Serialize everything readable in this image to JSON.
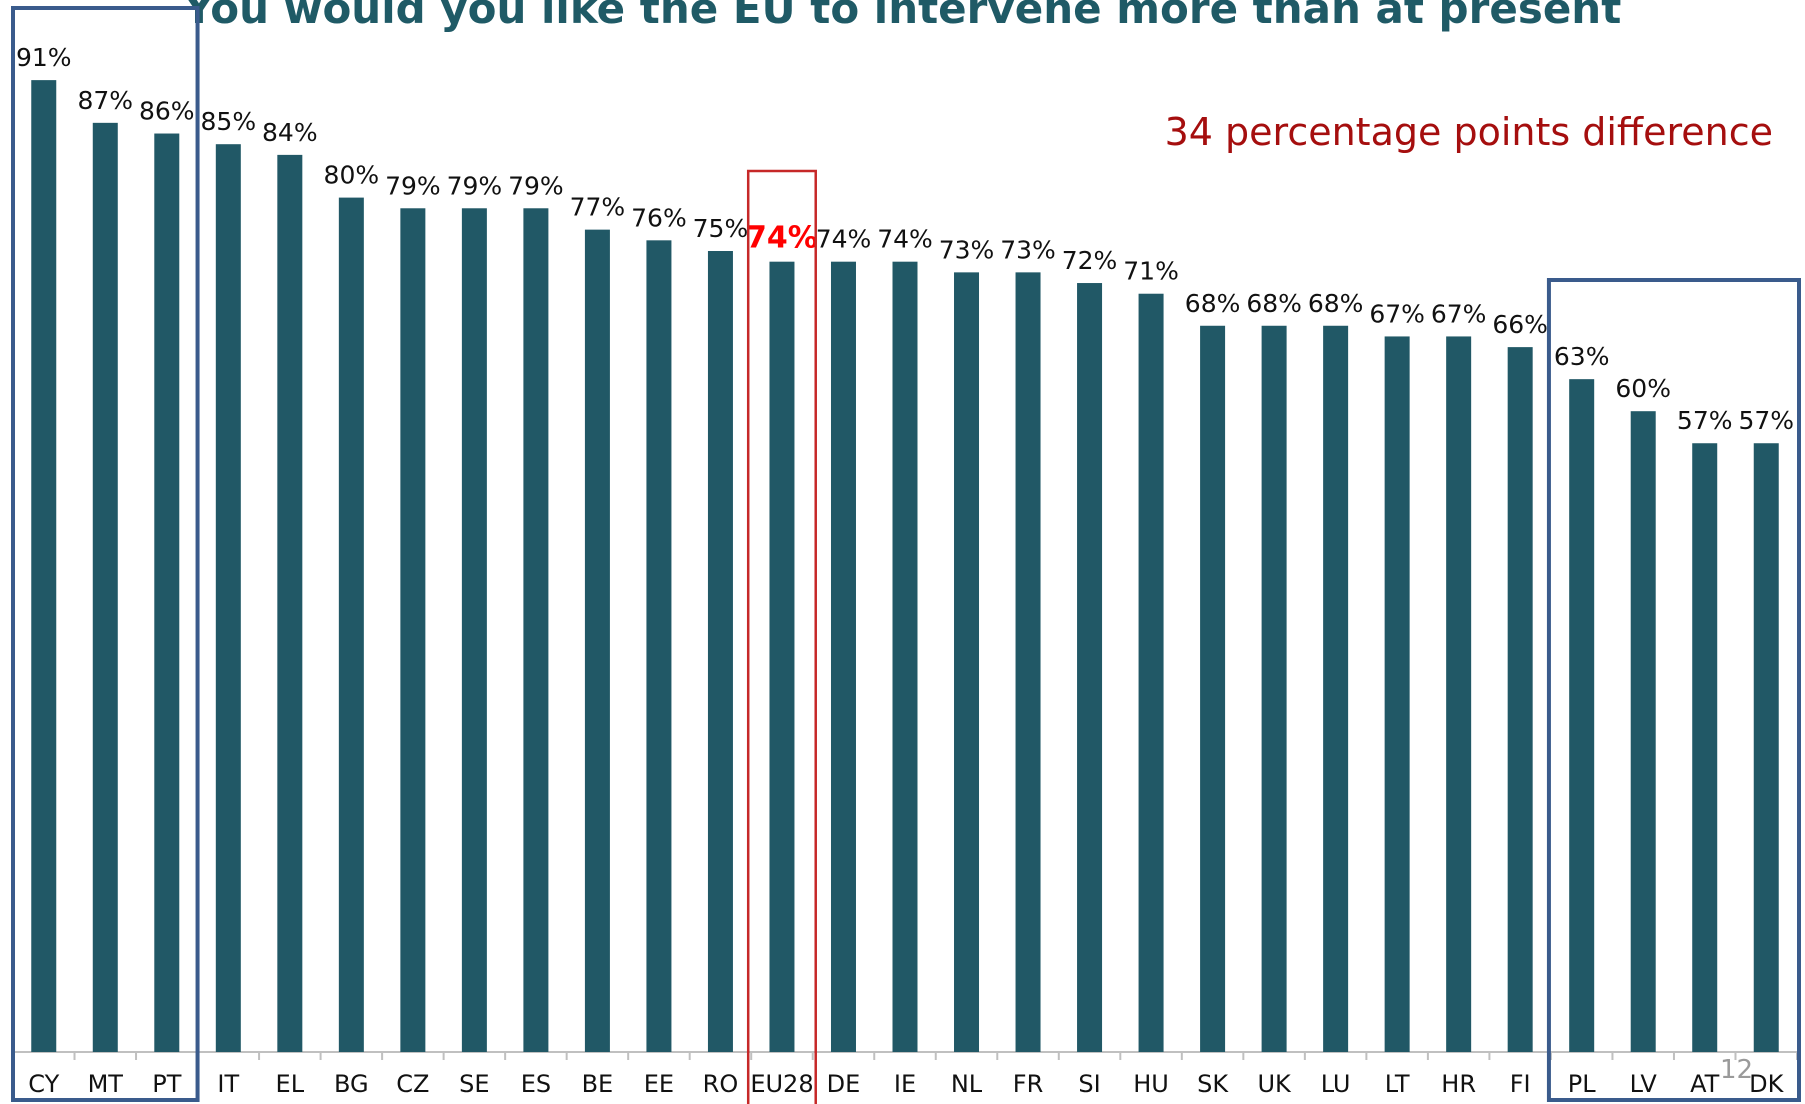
{
  "title": "You would you like the EU to intervene more than at present",
  "annotation": "34 percentage points difference",
  "page_number": "12",
  "colors": {
    "bar": "#215866",
    "highlight_label": "#ff0000",
    "group_box": "#3a5b8c",
    "eu_box": "#c62828",
    "annotation": "#a50e0e",
    "title": "#1f5a66"
  },
  "chart_data": {
    "type": "bar",
    "title": "You would you like the EU to intervene more than at present",
    "categories": [
      "CY",
      "MT",
      "PT",
      "IT",
      "EL",
      "BG",
      "CZ",
      "SE",
      "ES",
      "BE",
      "EE",
      "RO",
      "EU28",
      "DE",
      "IE",
      "NL",
      "FR",
      "SI",
      "HU",
      "SK",
      "UK",
      "LU",
      "LT",
      "HR",
      "FI",
      "PL",
      "LV",
      "AT",
      "DK"
    ],
    "values": [
      91,
      87,
      86,
      85,
      84,
      80,
      79,
      79,
      79,
      77,
      76,
      75,
      74,
      74,
      74,
      73,
      73,
      72,
      71,
      68,
      68,
      68,
      67,
      67,
      66,
      63,
      60,
      57,
      57
    ],
    "labels": [
      "91%",
      "87%",
      "86%",
      "85%",
      "84%",
      "80%",
      "79%",
      "79%",
      "79%",
      "77%",
      "76%",
      "75%",
      "74%",
      "74%",
      "74%",
      "73%",
      "73%",
      "72%",
      "71%",
      "68%",
      "68%",
      "68%",
      "67%",
      "67%",
      "66%",
      "63%",
      "60%",
      "57%",
      "57%"
    ],
    "highlight_category": "EU28",
    "highlight_groups": [
      {
        "categories": [
          "CY",
          "MT",
          "PT"
        ]
      },
      {
        "categories": [
          "PL",
          "LV",
          "AT",
          "DK"
        ]
      }
    ],
    "xlabel": "",
    "ylabel": "",
    "ylim": [
      0,
      100
    ],
    "grid": false,
    "legend": "none"
  }
}
